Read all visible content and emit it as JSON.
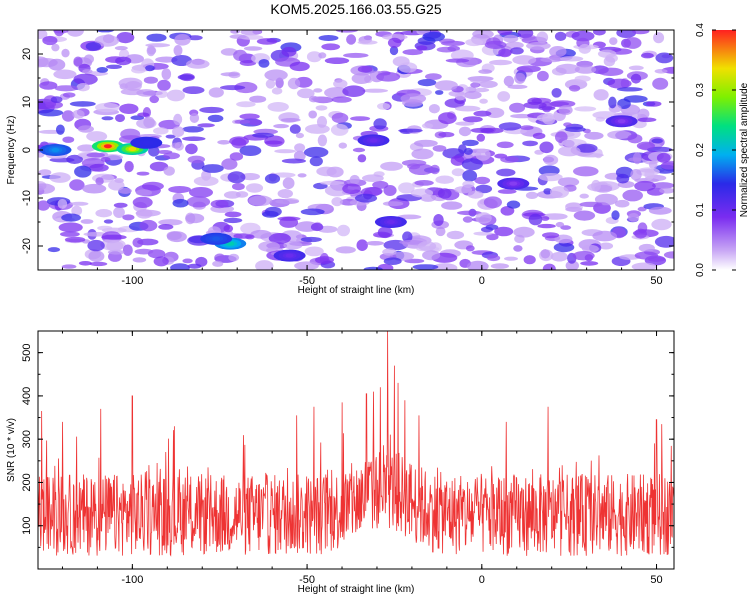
{
  "title": "KOM5.2025.166.03.55.G25",
  "chart_data": [
    {
      "type": "heatmap",
      "title": "KOM5.2025.166.03.55.G25",
      "xlabel": "Height of straight line (km)",
      "ylabel": "Frequency (Hz)",
      "xlim": [
        -127,
        55
      ],
      "ylim": [
        -25,
        25
      ],
      "x_ticks": [
        "-100",
        "-50",
        "0",
        "50"
      ],
      "y_ticks": [
        "-20",
        "-10",
        "0",
        "10",
        "20"
      ],
      "colorbar": {
        "label": "Normalized spectral amplitude",
        "range": [
          0,
          0.4
        ],
        "ticks": [
          "0.0",
          "0.1",
          "0.2",
          "0.3",
          "0.4"
        ]
      },
      "hotspots": [
        {
          "x": -122,
          "y": 0,
          "value": 0.18
        },
        {
          "x": -107,
          "y": 0.8,
          "value": 0.4
        },
        {
          "x": -100,
          "y": 0.2,
          "value": 0.34
        },
        {
          "x": -96,
          "y": 1.5,
          "value": 0.14
        },
        {
          "x": -72,
          "y": -19.5,
          "value": 0.22
        },
        {
          "x": -76,
          "y": -18.5,
          "value": 0.16
        },
        {
          "x": -55,
          "y": -22,
          "value": 0.1
        },
        {
          "x": -31,
          "y": 2,
          "value": 0.1
        },
        {
          "x": -26,
          "y": -15,
          "value": 0.1
        },
        {
          "x": 9,
          "y": -7,
          "value": 0.08
        },
        {
          "x": 40,
          "y": 6,
          "value": 0.08
        }
      ]
    },
    {
      "type": "line",
      "xlabel": "Height of straight line (km)",
      "ylabel": "SNR (10 * v/v)",
      "xlim": [
        -127,
        55
      ],
      "ylim": [
        0,
        550
      ],
      "x_ticks": [
        "-100",
        "-50",
        "0",
        "50"
      ],
      "y_ticks": [
        "100",
        "200",
        "300",
        "400",
        "500"
      ],
      "series": [
        {
          "color": "#ee3333",
          "baseline_mean": 125,
          "noise_range": [
            10,
            340
          ],
          "peaks": [
            {
              "x": -126,
              "value": 365
            },
            {
              "x": -120,
              "value": 340
            },
            {
              "x": -109,
              "value": 370
            },
            {
              "x": -100,
              "value": 400
            },
            {
              "x": -88,
              "value": 330
            },
            {
              "x": -53,
              "value": 355
            },
            {
              "x": -48,
              "value": 375
            },
            {
              "x": -40,
              "value": 385
            },
            {
              "x": -33,
              "value": 405
            },
            {
              "x": -31,
              "value": 410
            },
            {
              "x": -29,
              "value": 420
            },
            {
              "x": -27,
              "value": 550
            },
            {
              "x": -25,
              "value": 470
            },
            {
              "x": -24,
              "value": 430
            },
            {
              "x": -22,
              "value": 390
            },
            {
              "x": -18,
              "value": 355
            },
            {
              "x": 7,
              "value": 340
            },
            {
              "x": 19,
              "value": 375
            },
            {
              "x": 50,
              "value": 345
            }
          ]
        }
      ]
    }
  ]
}
